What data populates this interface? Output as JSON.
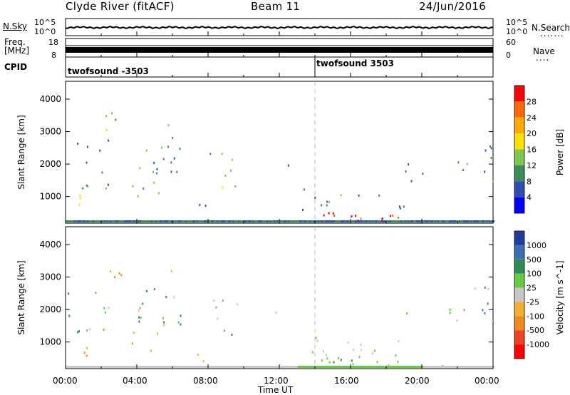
{
  "header": {
    "station": "Clyde River (fitACF)",
    "beam": "Beam 11",
    "date": "24/Jun/2016"
  },
  "noise_panel": {
    "left_label": "N.Sky",
    "right_label": "N.Search",
    "left_ticks": [
      "10^5",
      "10^0"
    ],
    "right_ticks": [
      "10^5",
      "10^0"
    ]
  },
  "freq_panel": {
    "left_label_line1": "Freq.",
    "left_label_line2": "[MHz]",
    "right_label": "Nave",
    "left_ticks": [
      "18",
      "8"
    ],
    "right_ticks": [
      "60",
      "0"
    ]
  },
  "cpid_panel": {
    "label": "CPID",
    "segments": [
      "twofsound -3503",
      "twofsound 3503"
    ]
  },
  "chart_data": [
    {
      "type": "heatmap",
      "name": "power",
      "ylabel": "Slant Range [km]",
      "yticks": [
        "1000",
        "2000",
        "3000",
        "4000"
      ],
      "ylim": [
        180,
        4550
      ],
      "xlim_hours": [
        0,
        24
      ],
      "colorbar_label": "Power [dB]",
      "colorbar_ticks": [
        "28",
        "24",
        "20",
        "16",
        "12",
        "8",
        "4"
      ],
      "colorbar_colors": [
        "#ff0000",
        "#ff6a00",
        "#ffaa00",
        "#ffe000",
        "#7ec850",
        "#3a8c5a",
        "#2f4fb0",
        "#0000ff"
      ]
    },
    {
      "type": "heatmap",
      "name": "velocity",
      "ylabel": "Slant Range [km]",
      "yticks": [
        "1000",
        "2000",
        "3000",
        "4000"
      ],
      "ylim": [
        180,
        4550
      ],
      "xlim_hours": [
        0,
        24
      ],
      "colorbar_label": "Velocity [m s^-1]",
      "colorbar_ticks": [
        "1000",
        "500",
        "100",
        "25",
        "-25",
        "-100",
        "-500",
        "-1000"
      ],
      "colorbar_colors": [
        "#1e3ca0",
        "#3c6eb4",
        "#2e8b57",
        "#66cc44",
        "#c8c8c8",
        "#f0b030",
        "#f08a1c",
        "#f04020",
        "#ff0000"
      ]
    }
  ],
  "xaxis": {
    "title": "Time UT",
    "ticks": [
      "00:00",
      "04:00",
      "08:00",
      "12:00",
      "16:00",
      "20:00",
      "00:00"
    ]
  }
}
